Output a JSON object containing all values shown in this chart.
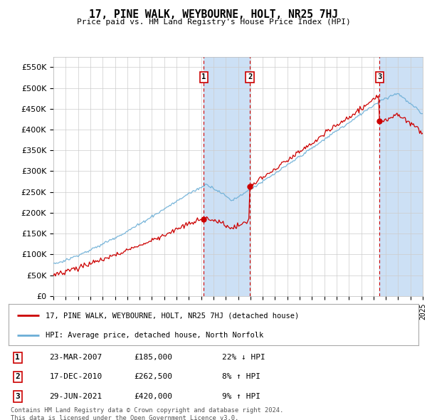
{
  "title": "17, PINE WALK, WEYBOURNE, HOLT, NR25 7HJ",
  "subtitle": "Price paid vs. HM Land Registry's House Price Index (HPI)",
  "ylim": [
    0,
    575000
  ],
  "yticks": [
    0,
    50000,
    100000,
    150000,
    200000,
    250000,
    300000,
    350000,
    400000,
    450000,
    500000,
    550000
  ],
  "ytick_labels": [
    "£0",
    "£50K",
    "£100K",
    "£150K",
    "£200K",
    "£250K",
    "£300K",
    "£350K",
    "£400K",
    "£450K",
    "£500K",
    "£550K"
  ],
  "x_start_year": 1995,
  "x_end_year": 2025,
  "hpi_color": "#6baed6",
  "price_color": "#cc0000",
  "sale_dates_decimal": [
    2007.22,
    2010.96,
    2021.49
  ],
  "sale_prices": [
    185000,
    262500,
    420000
  ],
  "sale_labels": [
    "1",
    "2",
    "3"
  ],
  "sale_info": [
    {
      "label": "1",
      "date": "23-MAR-2007",
      "price": "£185,000",
      "hpi_diff": "22% ↓ HPI"
    },
    {
      "label": "2",
      "date": "17-DEC-2010",
      "price": "£262,500",
      "hpi_diff": "8% ↑ HPI"
    },
    {
      "label": "3",
      "date": "29-JUN-2021",
      "price": "£420,000",
      "hpi_diff": "9% ↑ HPI"
    }
  ],
  "legend_label_red": "17, PINE WALK, WEYBOURNE, HOLT, NR25 7HJ (detached house)",
  "legend_label_blue": "HPI: Average price, detached house, North Norfolk",
  "footer": "Contains HM Land Registry data © Crown copyright and database right 2024.\nThis data is licensed under the Open Government Licence v3.0.",
  "background_color": "#ffffff",
  "grid_color": "#cccccc",
  "shade_color": "#cce0f5"
}
